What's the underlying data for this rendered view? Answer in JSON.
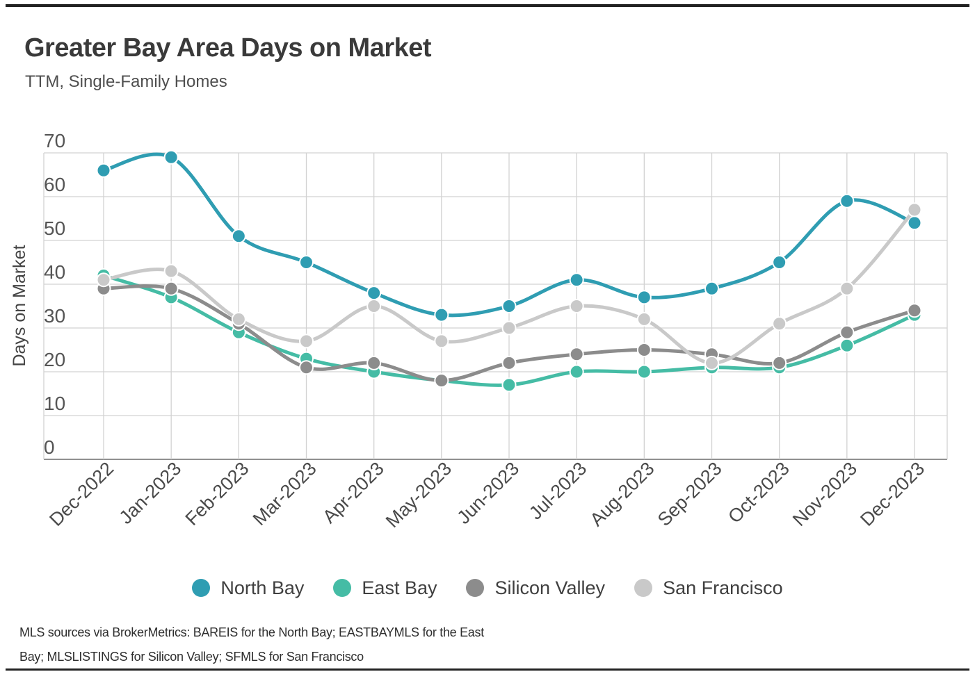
{
  "page": {
    "title": "Greater Bay Area Days on Market",
    "subtitle": "TTM, Single-Family Homes",
    "footer_line1": "MLS sources via BrokerMetrics: BAREIS for the North Bay; EASTBAYMLS for the East",
    "footer_line2": "Bay; MLSLISTINGS for Silicon Valley; SFMLS for San Francisco"
  },
  "chart_data": {
    "type": "line",
    "title": "Greater Bay Area Days on Market",
    "subtitle": "TTM, Single-Family Homes",
    "xlabel": "",
    "ylabel": "Days on Market",
    "ylim": [
      0,
      70
    ],
    "ytick_interval": 10,
    "yticks": [
      0,
      10,
      20,
      30,
      40,
      50,
      60,
      70
    ],
    "grid": true,
    "legend_position": "bottom",
    "categories": [
      "Dec-2022",
      "Jan-2023",
      "Feb-2023",
      "Mar-2023",
      "Apr-2023",
      "May-2023",
      "Jun-2023",
      "Jul-2023",
      "Aug-2023",
      "Sep-2023",
      "Oct-2023",
      "Nov-2023",
      "Dec-2023"
    ],
    "series": [
      {
        "name": "North Bay",
        "color": "#2f9db2",
        "values": [
          66,
          69,
          51,
          45,
          38,
          33,
          35,
          41,
          37,
          39,
          45,
          59,
          54
        ]
      },
      {
        "name": "East Bay",
        "color": "#45bca5",
        "values": [
          42,
          37,
          29,
          23,
          20,
          18,
          17,
          20,
          20,
          21,
          21,
          26,
          33
        ]
      },
      {
        "name": "Silicon Valley",
        "color": "#8c8c8c",
        "values": [
          39,
          39,
          31,
          21,
          22,
          18,
          22,
          24,
          25,
          24,
          22,
          29,
          34
        ]
      },
      {
        "name": "San Francisco",
        "color": "#c9c9c9",
        "values": [
          41,
          43,
          32,
          27,
          35,
          27,
          30,
          35,
          32,
          22,
          31,
          39,
          57
        ]
      }
    ]
  },
  "colors": {
    "north_bay": "#2f9db2",
    "east_bay": "#45bca5",
    "silicon_valley": "#8c8c8c",
    "san_francisco": "#c9c9c9",
    "gridline": "#d2d2d2",
    "baseline": "#909090",
    "tick_text": "#555555",
    "rule": "#222222"
  }
}
